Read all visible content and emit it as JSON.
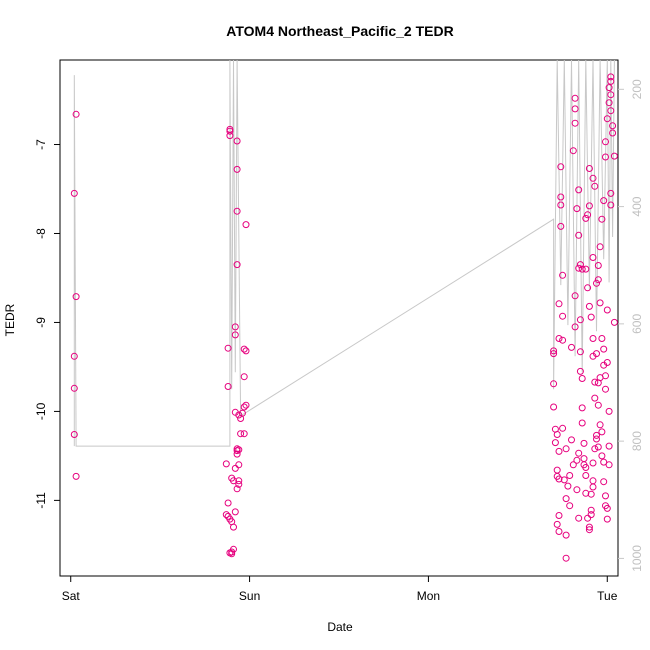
{
  "chart_data": {
    "type": "scatter",
    "title": "ATOM4 Northeast_Pacific_2 TEDR",
    "xlabel": "Date",
    "ylabel": "TEDR",
    "x_tick_labels": [
      "Sat",
      "Sun",
      "Mon",
      "Tue"
    ],
    "x_tick_values": [
      0,
      1,
      2,
      3
    ],
    "xlim": [
      -0.06,
      3.06
    ],
    "y_ticks": [
      -7,
      -8,
      -9,
      -10,
      -11
    ],
    "ylim": [
      -11.85,
      -6.05
    ],
    "secondary_axis": {
      "ticks": [
        200,
        400,
        600,
        800,
        1000
      ],
      "range": [
        1030,
        150
      ],
      "color": "#c8c8c8"
    },
    "grid": false,
    "marker_color": "#e6007e",
    "line_color": "#c8c8c8",
    "series": [
      {
        "values": [
          [
            0.02,
            -7.55
          ],
          [
            0.02,
            -9.38
          ],
          [
            0.02,
            -9.74
          ],
          [
            0.02,
            -10.26
          ],
          [
            0.03,
            -6.66
          ],
          [
            0.03,
            -8.71
          ],
          [
            0.03,
            -10.73
          ],
          [
            0.89,
            -6.83
          ],
          [
            0.89,
            -6.85
          ],
          [
            0.89,
            -6.9
          ],
          [
            0.88,
            -9.29
          ],
          [
            0.88,
            -9.72
          ],
          [
            0.87,
            -10.59
          ],
          [
            0.88,
            -11.03
          ],
          [
            0.87,
            -11.16
          ],
          [
            0.88,
            -11.18
          ],
          [
            0.89,
            -11.21
          ],
          [
            0.89,
            -11.59
          ],
          [
            0.9,
            -11.58
          ],
          [
            0.9,
            -11.6
          ],
          [
            0.91,
            -11.55
          ],
          [
            0.91,
            -11.3
          ],
          [
            0.9,
            -11.24
          ],
          [
            0.92,
            -11.13
          ],
          [
            0.9,
            -10.75
          ],
          [
            0.91,
            -10.78
          ],
          [
            0.92,
            -10.64
          ],
          [
            0.93,
            -6.96
          ],
          [
            0.93,
            -7.28
          ],
          [
            0.93,
            -7.75
          ],
          [
            0.93,
            -8.35
          ],
          [
            0.92,
            -9.05
          ],
          [
            0.92,
            -9.14
          ],
          [
            0.92,
            -10.01
          ],
          [
            0.93,
            -10.42
          ],
          [
            0.93,
            -10.44
          ],
          [
            0.94,
            -10.43
          ],
          [
            0.93,
            -10.48
          ],
          [
            0.94,
            -10.6
          ],
          [
            0.94,
            -10.78
          ],
          [
            0.94,
            -10.82
          ],
          [
            0.93,
            -10.87
          ],
          [
            0.94,
            -10.04
          ],
          [
            0.95,
            -10.08
          ],
          [
            0.95,
            -10.25
          ],
          [
            0.97,
            -9.3
          ],
          [
            0.98,
            -9.32
          ],
          [
            0.97,
            -9.61
          ],
          [
            0.97,
            -9.95
          ],
          [
            0.98,
            -9.93
          ],
          [
            0.97,
            -10.25
          ],
          [
            0.98,
            -7.9
          ],
          [
            0.96,
            -10.02
          ],
          [
            2.7,
            -9.32
          ],
          [
            2.7,
            -9.35
          ],
          [
            2.7,
            -9.69
          ],
          [
            2.7,
            -9.95
          ],
          [
            2.71,
            -10.2
          ],
          [
            2.71,
            -10.35
          ],
          [
            2.72,
            -10.66
          ],
          [
            2.72,
            -10.73
          ],
          [
            2.72,
            -11.27
          ],
          [
            2.73,
            -11.35
          ],
          [
            2.73,
            -11.17
          ],
          [
            2.73,
            -10.76
          ],
          [
            2.73,
            -10.45
          ],
          [
            2.72,
            -10.26
          ],
          [
            2.73,
            -9.18
          ],
          [
            2.73,
            -8.79
          ],
          [
            2.74,
            -7.59
          ],
          [
            2.74,
            -7.25
          ],
          [
            2.74,
            -7.68
          ],
          [
            2.74,
            -7.92
          ],
          [
            2.75,
            -8.47
          ],
          [
            2.75,
            -8.93
          ],
          [
            2.75,
            -9.2
          ],
          [
            2.75,
            -10.19
          ],
          [
            2.76,
            -10.77
          ],
          [
            2.77,
            -10.98
          ],
          [
            2.77,
            -11.39
          ],
          [
            2.77,
            -11.65
          ],
          [
            2.77,
            -10.42
          ],
          [
            2.78,
            -10.84
          ],
          [
            2.79,
            -10.72
          ],
          [
            2.79,
            -11.06
          ],
          [
            2.8,
            -10.32
          ],
          [
            2.81,
            -10.6
          ],
          [
            2.8,
            -9.28
          ],
          [
            2.82,
            -8.7
          ],
          [
            2.82,
            -9.05
          ],
          [
            2.83,
            -10.55
          ],
          [
            2.83,
            -10.88
          ],
          [
            2.84,
            -11.2
          ],
          [
            2.84,
            -10.47
          ],
          [
            2.81,
            -7.07
          ],
          [
            2.82,
            -6.48
          ],
          [
            2.82,
            -6.6
          ],
          [
            2.82,
            -6.76
          ],
          [
            2.84,
            -7.51
          ],
          [
            2.83,
            -7.72
          ],
          [
            2.84,
            -8.02
          ],
          [
            2.85,
            -8.35
          ],
          [
            2.85,
            -8.97
          ],
          [
            2.85,
            -9.33
          ],
          [
            2.85,
            -9.55
          ],
          [
            2.86,
            -9.63
          ],
          [
            2.86,
            -9.96
          ],
          [
            2.86,
            -10.13
          ],
          [
            2.87,
            -10.36
          ],
          [
            2.87,
            -10.53
          ],
          [
            2.87,
            -10.6
          ],
          [
            2.88,
            -10.63
          ],
          [
            2.88,
            -10.72
          ],
          [
            2.88,
            -10.92
          ],
          [
            2.89,
            -11.2
          ],
          [
            2.9,
            -11.33
          ],
          [
            2.9,
            -11.3
          ],
          [
            2.91,
            -11.16
          ],
          [
            2.91,
            -11.11
          ],
          [
            2.91,
            -10.93
          ],
          [
            2.92,
            -10.85
          ],
          [
            2.92,
            -10.78
          ],
          [
            2.92,
            -10.58
          ],
          [
            2.93,
            -10.42
          ],
          [
            2.94,
            -10.27
          ],
          [
            2.94,
            -10.31
          ],
          [
            2.95,
            -10.4
          ],
          [
            2.96,
            -10.15
          ],
          [
            2.97,
            -10.23
          ],
          [
            2.97,
            -10.5
          ],
          [
            2.98,
            -10.57
          ],
          [
            2.98,
            -10.79
          ],
          [
            2.99,
            -10.95
          ],
          [
            2.99,
            -11.06
          ],
          [
            3.0,
            -11.09
          ],
          [
            3.0,
            -11.21
          ],
          [
            3.01,
            -10.6
          ],
          [
            3.01,
            -10.39
          ],
          [
            3.01,
            -10.0
          ],
          [
            2.95,
            -9.93
          ],
          [
            2.95,
            -9.68
          ],
          [
            2.96,
            -9.62
          ],
          [
            2.94,
            -9.35
          ],
          [
            2.98,
            -9.3
          ],
          [
            2.98,
            -9.48
          ],
          [
            2.99,
            -9.75
          ],
          [
            2.99,
            -9.6
          ],
          [
            3.0,
            -9.45
          ],
          [
            2.97,
            -9.18
          ],
          [
            2.96,
            -8.78
          ],
          [
            2.95,
            -8.52
          ],
          [
            2.95,
            -8.36
          ],
          [
            2.96,
            -8.15
          ],
          [
            2.97,
            -7.84
          ],
          [
            2.98,
            -7.63
          ],
          [
            2.99,
            -7.14
          ],
          [
            2.99,
            -6.97
          ],
          [
            3.0,
            -6.71
          ],
          [
            3.01,
            -6.53
          ],
          [
            3.01,
            -6.36
          ],
          [
            3.02,
            -6.24
          ],
          [
            3.02,
            -6.29
          ],
          [
            3.02,
            -6.44
          ],
          [
            3.02,
            -6.62
          ],
          [
            3.03,
            -6.79
          ],
          [
            3.03,
            -6.87
          ],
          [
            3.02,
            -7.55
          ],
          [
            3.02,
            -7.68
          ],
          [
            3.04,
            -7.13
          ],
          [
            3.04,
            -9.0
          ],
          [
            3.0,
            -8.86
          ],
          [
            2.92,
            -8.27
          ],
          [
            2.94,
            -8.56
          ],
          [
            2.9,
            -7.69
          ],
          [
            2.88,
            -7.83
          ],
          [
            2.89,
            -7.79
          ],
          [
            2.9,
            -7.27
          ],
          [
            2.92,
            -7.38
          ],
          [
            2.93,
            -7.47
          ],
          [
            2.84,
            -8.39
          ],
          [
            2.86,
            -8.4
          ],
          [
            2.88,
            -8.4
          ],
          [
            2.89,
            -8.61
          ],
          [
            2.9,
            -8.82
          ],
          [
            2.91,
            -8.94
          ],
          [
            2.92,
            -9.18
          ],
          [
            2.92,
            -9.38
          ],
          [
            2.93,
            -9.67
          ],
          [
            2.93,
            -9.85
          ]
        ]
      }
    ],
    "line_path": [
      [
        0.02,
        -10.39
      ],
      [
        0.02,
        -6.22
      ],
      [
        0.03,
        -10.39
      ],
      [
        0.03,
        -10.39
      ],
      [
        0.89,
        -10.39
      ],
      [
        0.89,
        -6.05
      ],
      [
        0.9,
        -9.75
      ],
      [
        0.91,
        -6.05
      ],
      [
        0.92,
        -9.56
      ],
      [
        0.93,
        -6.05
      ],
      [
        0.95,
        -10.05
      ],
      [
        2.7,
        -7.84
      ],
      [
        2.7,
        -9.75
      ],
      [
        2.72,
        -6.05
      ],
      [
        2.74,
        -8.58
      ],
      [
        2.76,
        -6.05
      ],
      [
        2.78,
        -9.03
      ],
      [
        2.8,
        -6.05
      ],
      [
        2.82,
        -9.38
      ],
      [
        2.84,
        -6.05
      ],
      [
        2.86,
        -9.56
      ],
      [
        2.88,
        -6.05
      ],
      [
        2.9,
        -8.63
      ],
      [
        2.92,
        -6.05
      ],
      [
        2.94,
        -9.1
      ],
      [
        2.96,
        -6.05
      ],
      [
        2.98,
        -8.29
      ],
      [
        3.0,
        -6.05
      ],
      [
        3.01,
        -8.55
      ],
      [
        3.02,
        -6.05
      ],
      [
        3.03,
        -8.04
      ],
      [
        3.04,
        -6.05
      ]
    ]
  }
}
